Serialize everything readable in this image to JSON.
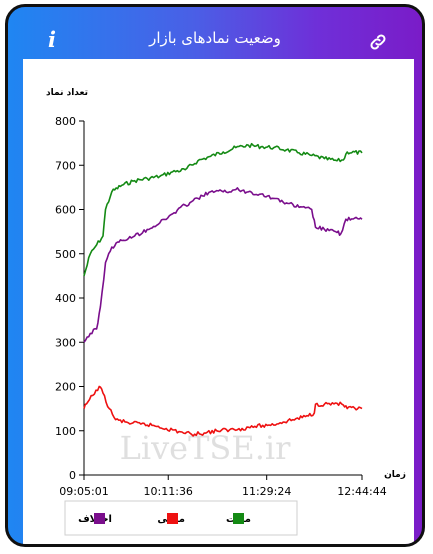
{
  "header": {
    "title": "وضعیت نمادهای بازار",
    "info_icon": "info-icon",
    "link_icon": "link-icon"
  },
  "watermark": "LiveTSE.ir",
  "colors": {
    "gradient_start": "#1f86f2",
    "gradient_end": "#7a1cc8",
    "positive": "#148a14",
    "negative": "#ee1111",
    "difference": "#7a0e8c"
  },
  "chart_data": {
    "type": "line",
    "ylabel": "تعداد نماد",
    "xlabel": "زمان",
    "ylim": [
      0,
      800
    ],
    "yticks": [
      0,
      100,
      200,
      300,
      400,
      500,
      600,
      700,
      800
    ],
    "xlim": [
      "09:05:01",
      "12:44:44"
    ],
    "xticks": [
      "09:05:01",
      "10:11:36",
      "11:29:24",
      "12:44:44"
    ],
    "grid": false,
    "legend_placement": "bottom",
    "series": [
      {
        "name": "مثبت",
        "color": "#148a14",
        "points": [
          [
            "09:05:01",
            450
          ],
          [
            "09:10",
            500
          ],
          [
            "09:15",
            520
          ],
          [
            "09:20",
            540
          ],
          [
            "09:22",
            600
          ],
          [
            "09:27",
            640
          ],
          [
            "09:35",
            655
          ],
          [
            "09:45",
            665
          ],
          [
            "09:55",
            670
          ],
          [
            "10:05",
            675
          ],
          [
            "10:15",
            685
          ],
          [
            "10:25",
            690
          ],
          [
            "10:35",
            710
          ],
          [
            "10:45",
            720
          ],
          [
            "10:55",
            730
          ],
          [
            "11:05",
            740
          ],
          [
            "11:15",
            745
          ],
          [
            "11:25",
            742
          ],
          [
            "11:35",
            740
          ],
          [
            "11:45",
            735
          ],
          [
            "11:55",
            728
          ],
          [
            "12:05",
            722
          ],
          [
            "12:15",
            715
          ],
          [
            "12:25",
            710
          ],
          [
            "12:30",
            712
          ],
          [
            "12:33",
            730
          ],
          [
            "12:44:44",
            728
          ]
        ]
      },
      {
        "name": "منفی",
        "color": "#ee1111",
        "points": [
          [
            "09:05:01",
            150
          ],
          [
            "09:08",
            165
          ],
          [
            "09:12",
            180
          ],
          [
            "09:17",
            200
          ],
          [
            "09:20",
            185
          ],
          [
            "09:25",
            150
          ],
          [
            "09:30",
            125
          ],
          [
            "09:40",
            118
          ],
          [
            "09:50",
            115
          ],
          [
            "10:00",
            112
          ],
          [
            "10:10",
            105
          ],
          [
            "10:20",
            98
          ],
          [
            "10:30",
            92
          ],
          [
            "10:40",
            95
          ],
          [
            "10:50",
            100
          ],
          [
            "11:00",
            102
          ],
          [
            "11:10",
            105
          ],
          [
            "11:20",
            110
          ],
          [
            "11:30",
            112
          ],
          [
            "11:40",
            118
          ],
          [
            "11:50",
            125
          ],
          [
            "12:00",
            132
          ],
          [
            "12:07",
            140
          ],
          [
            "12:08",
            160
          ],
          [
            "12:15",
            160
          ],
          [
            "12:25",
            162
          ],
          [
            "12:30",
            158
          ],
          [
            "12:33",
            150
          ],
          [
            "12:44:44",
            150
          ]
        ]
      },
      {
        "name": "اختلاف",
        "color": "#7a0e8c",
        "points": [
          [
            "09:05:01",
            300
          ],
          [
            "09:10",
            320
          ],
          [
            "09:15",
            330
          ],
          [
            "09:18",
            380
          ],
          [
            "09:22",
            480
          ],
          [
            "09:27",
            515
          ],
          [
            "09:35",
            530
          ],
          [
            "09:45",
            540
          ],
          [
            "09:55",
            555
          ],
          [
            "10:05",
            570
          ],
          [
            "10:15",
            590
          ],
          [
            "10:25",
            610
          ],
          [
            "10:35",
            625
          ],
          [
            "10:45",
            640
          ],
          [
            "10:55",
            640
          ],
          [
            "11:05",
            645
          ],
          [
            "11:15",
            640
          ],
          [
            "11:25",
            635
          ],
          [
            "11:35",
            625
          ],
          [
            "11:45",
            615
          ],
          [
            "11:55",
            605
          ],
          [
            "12:05",
            600
          ],
          [
            "12:08",
            560
          ],
          [
            "12:15",
            555
          ],
          [
            "12:25",
            548
          ],
          [
            "12:28",
            545
          ],
          [
            "12:32",
            578
          ],
          [
            "12:44:44",
            578
          ]
        ]
      }
    ]
  }
}
